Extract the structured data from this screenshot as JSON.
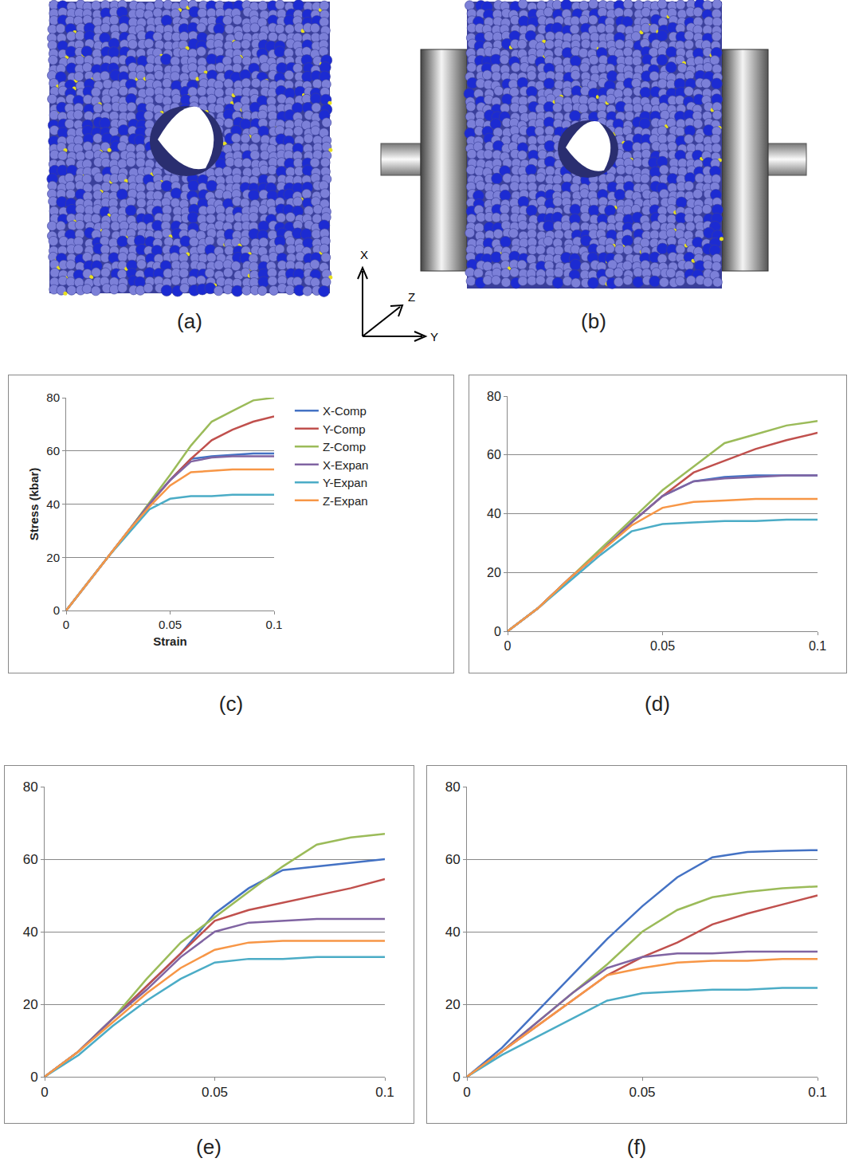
{
  "figure": {
    "panels": [
      {
        "label": "(a)"
      },
      {
        "label": "(b)"
      }
    ],
    "axes": {
      "vertical": "X",
      "depth": "Z",
      "horizontal": "Y"
    }
  },
  "chart_data": [
    {
      "type": "line",
      "label": "(c)",
      "x_label": "Strain",
      "y_label": "Stress (kbar)",
      "legend": "right",
      "grid": true,
      "xlim": [
        0,
        0.1
      ],
      "xticks": [
        0,
        0.05,
        0.1
      ],
      "ylim": [
        0,
        80
      ],
      "yticks": [
        0,
        20,
        40,
        60,
        80
      ],
      "x": [
        0,
        0.01,
        0.02,
        0.03,
        0.04,
        0.05,
        0.06,
        0.07,
        0.08,
        0.09,
        0.1
      ],
      "series": [
        {
          "name": "X-Comp",
          "color": "#4472c4",
          "values": [
            0,
            10,
            20,
            30,
            40,
            49,
            57,
            58,
            58.5,
            59,
            59
          ]
        },
        {
          "name": "Y-Comp",
          "color": "#c0504d",
          "values": [
            0,
            10,
            20,
            30,
            40,
            49,
            57,
            64,
            68,
            71,
            73
          ]
        },
        {
          "name": "Z-Comp",
          "color": "#9bbb59",
          "values": [
            0,
            10,
            20,
            30,
            40.5,
            51,
            62,
            71,
            75,
            79,
            80
          ]
        },
        {
          "name": "X-Expan",
          "color": "#8064a2",
          "values": [
            0,
            10,
            20,
            30,
            40,
            49,
            56,
            57.5,
            58,
            58,
            58
          ]
        },
        {
          "name": "Y-Expan",
          "color": "#4bacc6",
          "values": [
            0,
            10,
            20,
            29,
            38,
            42,
            43,
            43,
            43.5,
            43.5,
            43.5
          ]
        },
        {
          "name": "Z-Expan",
          "color": "#f79646",
          "values": [
            0,
            10,
            20,
            30,
            39,
            47,
            52,
            52.5,
            53,
            53,
            53
          ]
        }
      ]
    },
    {
      "type": "line",
      "label": "(d)",
      "grid": true,
      "xlim": [
        0,
        0.1
      ],
      "xticks": [
        0,
        0.05,
        0.1
      ],
      "ylim": [
        0,
        80
      ],
      "yticks": [
        0,
        20,
        40,
        60,
        80
      ],
      "x": [
        0,
        0.01,
        0.02,
        0.03,
        0.04,
        0.05,
        0.06,
        0.07,
        0.08,
        0.09,
        0.1
      ],
      "series": [
        {
          "color": "#4472c4",
          "values": [
            0,
            8,
            18,
            27,
            37,
            46,
            51,
            52.5,
            53,
            53,
            53
          ]
        },
        {
          "color": "#c0504d",
          "values": [
            0,
            8,
            18,
            27,
            37,
            46,
            54,
            58,
            62,
            65,
            67.5
          ]
        },
        {
          "color": "#9bbb59",
          "values": [
            0,
            8,
            18,
            28,
            38,
            48,
            56,
            64,
            67,
            70,
            71.5
          ]
        },
        {
          "color": "#8064a2",
          "values": [
            0,
            8,
            18,
            27,
            37,
            46,
            51,
            52,
            52.5,
            53,
            53
          ]
        },
        {
          "color": "#4bacc6",
          "values": [
            0,
            8,
            17,
            26,
            34,
            36.5,
            37,
            37.5,
            37.5,
            38,
            38
          ]
        },
        {
          "color": "#f79646",
          "values": [
            0,
            8,
            18,
            27,
            36,
            42,
            44,
            44.5,
            45,
            45,
            45
          ]
        }
      ]
    },
    {
      "type": "line",
      "label": "(e)",
      "grid": true,
      "xlim": [
        0,
        0.1
      ],
      "xticks": [
        0,
        0.05,
        0.1
      ],
      "ylim": [
        0,
        80
      ],
      "yticks": [
        0,
        20,
        40,
        60,
        80
      ],
      "x": [
        0,
        0.01,
        0.02,
        0.03,
        0.04,
        0.05,
        0.06,
        0.07,
        0.08,
        0.09,
        0.1
      ],
      "series": [
        {
          "color": "#4472c4",
          "values": [
            0,
            7,
            16,
            25,
            34,
            45,
            52,
            57,
            58,
            59,
            60
          ]
        },
        {
          "color": "#c0504d",
          "values": [
            0,
            7,
            16,
            25,
            34,
            43,
            46,
            48,
            50,
            52,
            54.5
          ]
        },
        {
          "color": "#9bbb59",
          "values": [
            0,
            7,
            16,
            27,
            37,
            44,
            51,
            58,
            64,
            66,
            67
          ]
        },
        {
          "color": "#8064a2",
          "values": [
            0,
            7,
            16,
            24,
            33,
            40,
            42.5,
            43,
            43.5,
            43.5,
            43.5
          ]
        },
        {
          "color": "#4bacc6",
          "values": [
            0,
            6,
            14,
            21,
            27,
            31.5,
            32.5,
            32.5,
            33,
            33,
            33
          ]
        },
        {
          "color": "#f79646",
          "values": [
            0,
            7,
            15,
            23,
            30,
            35,
            37,
            37.5,
            37.5,
            37.5,
            37.5
          ]
        }
      ]
    },
    {
      "type": "line",
      "label": "(f)",
      "grid": true,
      "xlim": [
        0,
        0.1
      ],
      "xticks": [
        0,
        0.05,
        0.1
      ],
      "ylim": [
        0,
        80
      ],
      "yticks": [
        0,
        20,
        40,
        60,
        80
      ],
      "x": [
        0,
        0.01,
        0.02,
        0.03,
        0.04,
        0.05,
        0.06,
        0.07,
        0.08,
        0.09,
        0.1
      ],
      "series": [
        {
          "color": "#4472c4",
          "values": [
            0,
            8,
            18,
            28,
            38,
            47,
            55,
            60.5,
            62,
            62.3,
            62.5
          ]
        },
        {
          "color": "#c0504d",
          "values": [
            0,
            7,
            14,
            21,
            28,
            33,
            37,
            42,
            45,
            47.5,
            50
          ]
        },
        {
          "color": "#9bbb59",
          "values": [
            0,
            7,
            15,
            23,
            31,
            40,
            46,
            49.5,
            51,
            52,
            52.5
          ]
        },
        {
          "color": "#8064a2",
          "values": [
            0,
            7,
            15,
            23,
            30,
            33,
            34,
            34,
            34.5,
            34.5,
            34.5
          ]
        },
        {
          "color": "#4bacc6",
          "values": [
            0,
            6,
            11,
            16,
            21,
            23,
            23.5,
            24,
            24,
            24.5,
            24.5
          ]
        },
        {
          "color": "#f79646",
          "values": [
            0,
            7,
            14,
            21,
            28,
            30,
            31.5,
            32,
            32,
            32.5,
            32.5
          ]
        }
      ]
    }
  ]
}
